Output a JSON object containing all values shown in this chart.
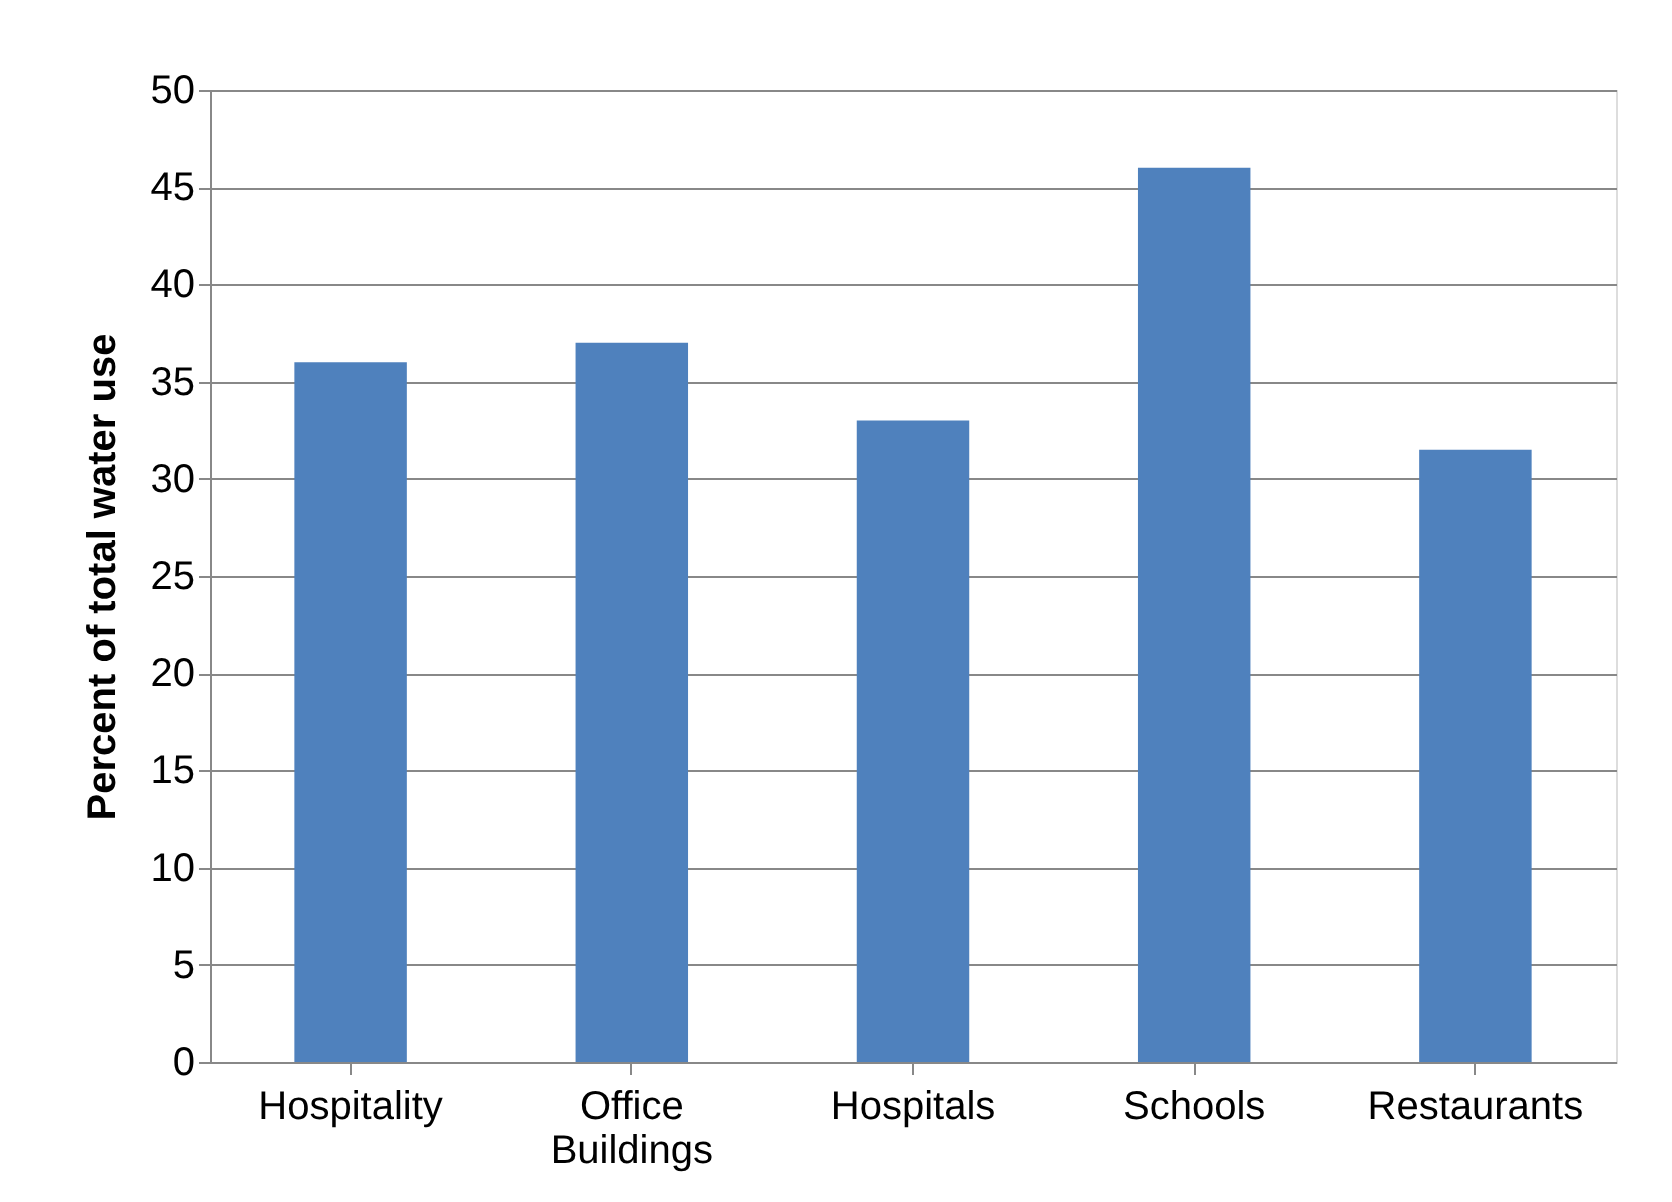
{
  "chart_data": {
    "type": "bar",
    "ylabel": "Percent of total water use",
    "categories": [
      "Hospitality",
      "Office Buildings",
      "Hospitals",
      "Schools",
      "Restaurants"
    ],
    "values": [
      36,
      37,
      33,
      46,
      31.5
    ],
    "color": "#4f81bd",
    "ylim": [
      0,
      50
    ],
    "yticks": [
      0,
      5,
      10,
      15,
      20,
      25,
      30,
      35,
      40,
      45,
      50
    ],
    "grid": "y"
  }
}
